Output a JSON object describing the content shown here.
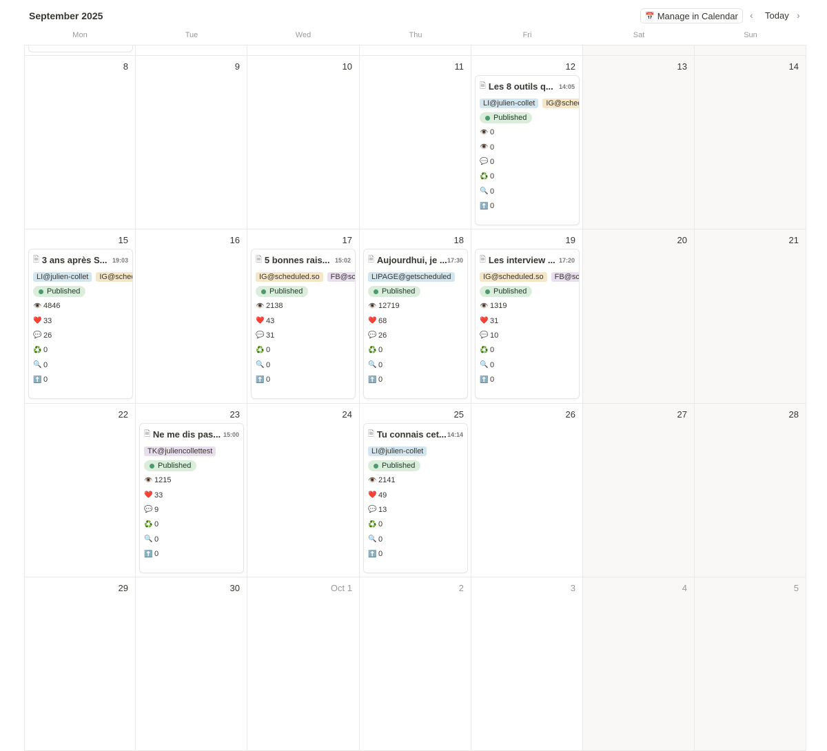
{
  "header": {
    "title": "September 2025",
    "manage_label": "Manage in Calendar",
    "today_label": "Today",
    "prev_icon": "chevron-left-icon",
    "next_icon": "chevron-right-icon"
  },
  "weekdays": [
    "Mon",
    "Tue",
    "Wed",
    "Thu",
    "Fri",
    "Sat",
    "Sun"
  ],
  "tag_colors": {
    "blue": "#d3e5ef",
    "yellow": "#f5e6c8",
    "purple": "#e8deee"
  },
  "status_color": "#4e9a6f",
  "weeks": [
    {
      "days": [
        {
          "n": "8"
        },
        {
          "n": "9"
        },
        {
          "n": "10"
        },
        {
          "n": "11"
        },
        {
          "n": "12",
          "post": {
            "title": "Les 8 outils q...",
            "time": "14:05",
            "tags": [
              {
                "t": "LI@julien-collet",
                "c": "blue"
              },
              {
                "t": "IG@sched",
                "c": "yellow"
              }
            ],
            "status": "Published",
            "stats": [
              {
                "icon": "👁️",
                "v": "0"
              },
              {
                "icon": "👁️",
                "v": "0"
              },
              {
                "icon": "💬",
                "v": "0"
              },
              {
                "icon": "♻️",
                "v": "0"
              },
              {
                "icon": "🔍",
                "v": "0"
              },
              {
                "icon": "⬆️",
                "v": "0"
              }
            ]
          }
        },
        {
          "n": "13"
        },
        {
          "n": "14"
        }
      ]
    },
    {
      "days": [
        {
          "n": "15",
          "post": {
            "title": "3 ans après S...",
            "time": "19:03",
            "tags": [
              {
                "t": "LI@julien-collet",
                "c": "blue"
              },
              {
                "t": "IG@sched",
                "c": "yellow"
              }
            ],
            "status": "Published",
            "stats": [
              {
                "icon": "👁️",
                "v": "4846"
              },
              {
                "icon": "❤️",
                "v": "33"
              },
              {
                "icon": "💬",
                "v": "26"
              },
              {
                "icon": "♻️",
                "v": "0"
              },
              {
                "icon": "🔍",
                "v": "0"
              },
              {
                "icon": "⬆️",
                "v": "0"
              }
            ]
          }
        },
        {
          "n": "16"
        },
        {
          "n": "17",
          "post": {
            "title": "5 bonnes rais...",
            "time": "15:02",
            "tags": [
              {
                "t": "IG@scheduled.so",
                "c": "yellow"
              },
              {
                "t": "FB@sch",
                "c": "purple"
              }
            ],
            "status": "Published",
            "stats": [
              {
                "icon": "👁️",
                "v": "2138"
              },
              {
                "icon": "❤️",
                "v": "43"
              },
              {
                "icon": "💬",
                "v": "31"
              },
              {
                "icon": "♻️",
                "v": "0"
              },
              {
                "icon": "🔍",
                "v": "0"
              },
              {
                "icon": "⬆️",
                "v": "0"
              }
            ]
          }
        },
        {
          "n": "18",
          "post": {
            "title": "Aujourdhui, je ...",
            "time": "17:30",
            "tags": [
              {
                "t": "LIPAGE@getscheduled",
                "c": "blue"
              }
            ],
            "status": "Published",
            "stats": [
              {
                "icon": "👁️",
                "v": "12719"
              },
              {
                "icon": "❤️",
                "v": "68"
              },
              {
                "icon": "💬",
                "v": "26"
              },
              {
                "icon": "♻️",
                "v": "0"
              },
              {
                "icon": "🔍",
                "v": "0"
              },
              {
                "icon": "⬆️",
                "v": "0"
              }
            ]
          }
        },
        {
          "n": "19",
          "post": {
            "title": "Les interview ...",
            "time": "17:20",
            "tags": [
              {
                "t": "IG@scheduled.so",
                "c": "yellow"
              },
              {
                "t": "FB@sch",
                "c": "purple"
              }
            ],
            "status": "Published",
            "stats": [
              {
                "icon": "👁️",
                "v": "1319"
              },
              {
                "icon": "❤️",
                "v": "31"
              },
              {
                "icon": "💬",
                "v": "10"
              },
              {
                "icon": "♻️",
                "v": "0"
              },
              {
                "icon": "🔍",
                "v": "0"
              },
              {
                "icon": "⬆️",
                "v": "0"
              }
            ]
          }
        },
        {
          "n": "20"
        },
        {
          "n": "21"
        }
      ]
    },
    {
      "days": [
        {
          "n": "22"
        },
        {
          "n": "23",
          "post": {
            "title": "Ne me dis pas...",
            "time": "15:00",
            "tags": [
              {
                "t": "TK@juliencollettest",
                "c": "purple"
              }
            ],
            "status": "Published",
            "stats": [
              {
                "icon": "👁️",
                "v": "1215"
              },
              {
                "icon": "❤️",
                "v": "33"
              },
              {
                "icon": "💬",
                "v": "9"
              },
              {
                "icon": "♻️",
                "v": "0"
              },
              {
                "icon": "🔍",
                "v": "0"
              },
              {
                "icon": "⬆️",
                "v": "0"
              }
            ]
          }
        },
        {
          "n": "24"
        },
        {
          "n": "25",
          "post": {
            "title": "Tu connais cet...",
            "time": "14:14",
            "tags": [
              {
                "t": "LI@julien-collet",
                "c": "blue"
              }
            ],
            "status": "Published",
            "stats": [
              {
                "icon": "👁️",
                "v": "2141"
              },
              {
                "icon": "❤️",
                "v": "49"
              },
              {
                "icon": "💬",
                "v": "13"
              },
              {
                "icon": "♻️",
                "v": "0"
              },
              {
                "icon": "🔍",
                "v": "0"
              },
              {
                "icon": "⬆️",
                "v": "0"
              }
            ]
          }
        },
        {
          "n": "26"
        },
        {
          "n": "27"
        },
        {
          "n": "28"
        }
      ]
    },
    {
      "days": [
        {
          "n": "29"
        },
        {
          "n": "30"
        },
        {
          "n": "Oct 1",
          "other": true
        },
        {
          "n": "2",
          "other": true
        },
        {
          "n": "3",
          "other": true
        },
        {
          "n": "4",
          "other": true
        },
        {
          "n": "5",
          "other": true
        }
      ]
    }
  ]
}
